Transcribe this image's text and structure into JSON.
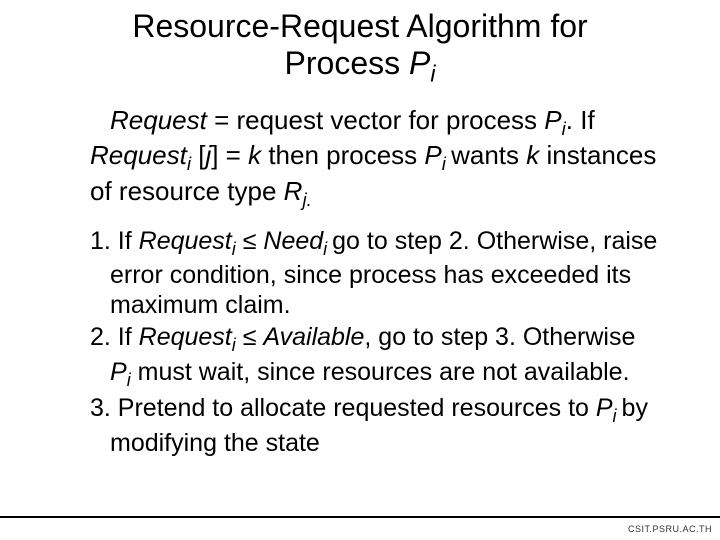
{
  "title_line1": "Resource-Request Algorithm for",
  "title_line2_prefix": "Process ",
  "title_line2_var": "P",
  "title_line2_sub": "i",
  "intro": {
    "t1": "Request",
    "t2": " = request vector for process ",
    "t3": "P",
    "t3sub": "i",
    "t4": ".  If ",
    "t5": "Request",
    "t5sub": "i",
    "t6": " [",
    "t6j": "j",
    "t6b": "] = ",
    "t6k": "k",
    "t7": " then process ",
    "t8": "P",
    "t8sub": "i ",
    "t9": "wants ",
    "t9k": "k",
    "t10": " instances of resource type ",
    "t11": "R",
    "t11sub": "j.",
    "t12": ""
  },
  "step1": {
    "a": "1.  If ",
    "b": "Request",
    "bsub": "i",
    "c": " ≤ ",
    "d": "Need",
    "dsub": "i ",
    "e": "go to step 2.  Otherwise, raise error condition, since process has exceeded its maximum claim."
  },
  "step2": {
    "a": "2.  If ",
    "b": "Request",
    "bsub": "i",
    "c": " ≤ ",
    "d": "Available",
    "e": ", go to step 3.  Otherwise ",
    "f": "P",
    "fsub": "i",
    "g": "  must wait, since resources are not available."
  },
  "step3": {
    "a": "3.  Pretend to allocate requested resources to ",
    "b": "P",
    "bsub": "i ",
    "c": "by modifying the state"
  },
  "footer": "CSIT.PSRU.AC.TH"
}
